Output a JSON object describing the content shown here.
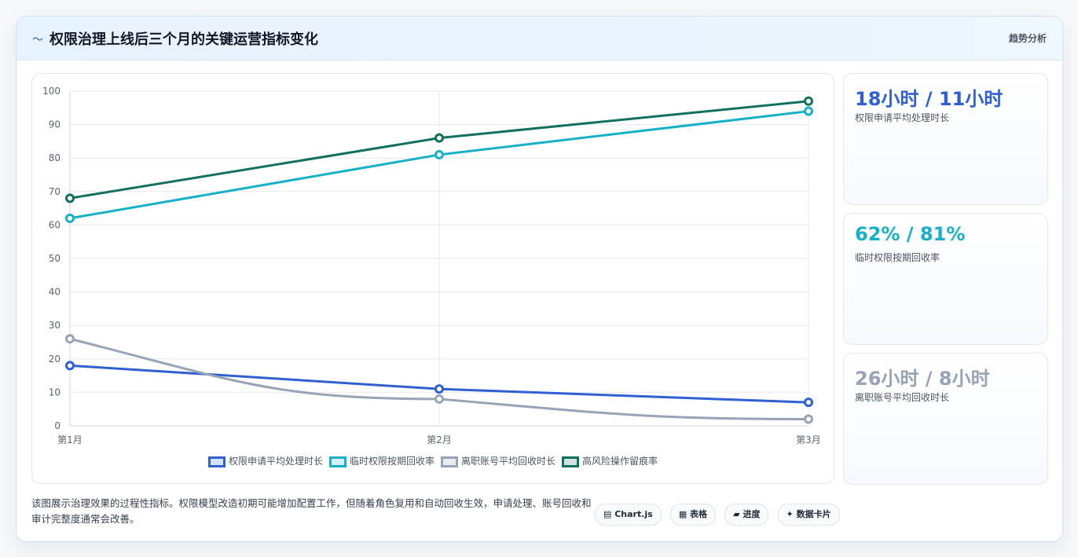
{
  "header": {
    "icon": "trend-icon",
    "title": "权限治理上线后三个月的关键运营指标变化",
    "tag": "趋势分析"
  },
  "chart_data": {
    "type": "line",
    "categories": [
      "第1月",
      "第2月",
      "第3月"
    ],
    "ylim": [
      0,
      100
    ],
    "yticks": [
      0,
      10,
      20,
      30,
      40,
      50,
      60,
      70,
      80,
      90,
      100
    ],
    "grid": true,
    "legend_position": "bottom",
    "series": [
      {
        "name": "权限申请平均处理时长",
        "values": [
          18,
          11,
          7
        ],
        "color": "#2f5fd0"
      },
      {
        "name": "临时权限按期回收率",
        "values": [
          62,
          81,
          94
        ],
        "color": "#17b1c7"
      },
      {
        "name": "离职账号平均回收时长",
        "values": [
          26,
          8,
          2
        ],
        "color": "#98a4b5"
      },
      {
        "name": "高风险操作留痕率",
        "values": [
          68,
          86,
          97
        ],
        "color": "#12705f"
      }
    ]
  },
  "stats": [
    {
      "value": "18小时 / 11小时",
      "label": "权限申请平均处理时长",
      "color": "#2f5fd0"
    },
    {
      "value": "62% / 81%",
      "label": "临时权限按期回收率",
      "color": "#17b1c7"
    },
    {
      "value": "26小时 / 8小时",
      "label": "离职账号平均回收时长",
      "color": "#98a4b5"
    }
  ],
  "footer": {
    "note": "该图展示治理效果的过程性指标。权限模型改造初期可能增加配置工作，但随着角色复用和自动回收生效，申请处理、账号回收和审计完整度通常会改善。",
    "chips": [
      "▤ Chart.js",
      "▦ 表格",
      "▰ 进度",
      "✦ 数据卡片"
    ]
  }
}
